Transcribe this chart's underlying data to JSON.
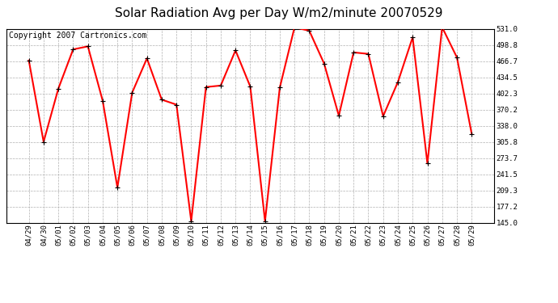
{
  "title": "Solar Radiation Avg per Day W/m2/minute 20070529",
  "copyright": "Copyright 2007 Cartronics.com",
  "dates": [
    "04/29",
    "04/30",
    "05/01",
    "05/02",
    "05/03",
    "05/04",
    "05/05",
    "05/06",
    "05/07",
    "05/08",
    "05/09",
    "05/10",
    "05/11",
    "05/12",
    "05/13",
    "05/14",
    "05/15",
    "05/16",
    "05/17",
    "05/18",
    "05/19",
    "05/20",
    "05/21",
    "05/22",
    "05/23",
    "05/24",
    "05/25",
    "05/26",
    "05/27",
    "05/28",
    "05/29"
  ],
  "values": [
    468,
    306,
    412,
    490,
    496,
    388,
    215,
    404,
    472,
    390,
    380,
    148,
    415,
    418,
    488,
    416,
    148,
    414,
    534,
    527,
    462,
    358,
    484,
    481,
    357,
    425,
    514,
    263,
    534,
    474,
    322
  ],
  "y_ticks": [
    145.0,
    177.2,
    209.3,
    241.5,
    273.7,
    305.8,
    338.0,
    370.2,
    402.3,
    434.5,
    466.7,
    498.8,
    531.0
  ],
  "ylim_min": 145.0,
  "ylim_max": 531.0,
  "line_color": "#ff0000",
  "bg_color": "#ffffff",
  "grid_color": "#b0b0b0",
  "title_fontsize": 11,
  "tick_fontsize": 6.5,
  "copyright_fontsize": 7
}
